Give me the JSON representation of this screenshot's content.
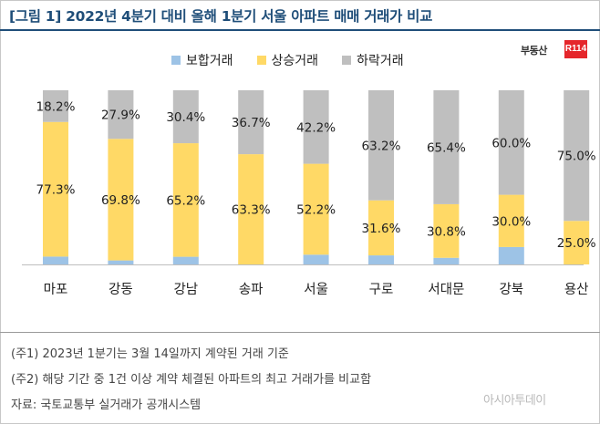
{
  "title": "[그림 1] 2022년 4분기 대비 올해 1분기 서울 아파트 매매 거래가 비교",
  "brand": {
    "name": "부동산",
    "badge": "R114"
  },
  "watermark": "아시아투데이",
  "colors": {
    "title": "#1f4e79",
    "series": [
      "#9dc3e6",
      "#ffd966",
      "#bfbfbf"
    ]
  },
  "chart_data": {
    "type": "bar",
    "stacked": true,
    "percent": true,
    "categories": [
      "마포",
      "강동",
      "강남",
      "송파",
      "서울",
      "구로",
      "서대문",
      "강북",
      "용산"
    ],
    "series": [
      {
        "name": "보합거래",
        "color": "#9dc3e6",
        "values": [
          4.5,
          2.3,
          4.4,
          0.0,
          5.6,
          5.2,
          3.8,
          10.0,
          0.0
        ]
      },
      {
        "name": "상승거래",
        "color": "#ffd966",
        "values": [
          77.3,
          69.8,
          65.2,
          63.3,
          52.2,
          31.6,
          30.8,
          30.0,
          25.0
        ]
      },
      {
        "name": "하락거래",
        "color": "#bfbfbf",
        "values": [
          18.2,
          27.9,
          30.4,
          36.7,
          42.2,
          63.2,
          65.4,
          60.0,
          75.0
        ]
      }
    ],
    "data_labels": {
      "상승거래": [
        "77.3%",
        "69.8%",
        "65.2%",
        "63.3%",
        "52.2%",
        "31.6%",
        "30.8%",
        "30.0%",
        "25.0%"
      ],
      "하락거래": [
        "18.2%",
        "27.9%",
        "30.4%",
        "36.7%",
        "42.2%",
        "63.2%",
        "65.4%",
        "60.0%",
        "75.0%"
      ]
    },
    "ylim": [
      0,
      100
    ],
    "legend": "top",
    "grid": false
  },
  "footnotes": [
    "(주1) 2023년 1분기는 3월 14일까지 계약된 거래 기준",
    "(주2) 해당 기간 중 1건 이상 계약 체결된 아파트의 최고 거래가를 비교함",
    "자료: 국토교통부 실거래가 공개시스템"
  ]
}
